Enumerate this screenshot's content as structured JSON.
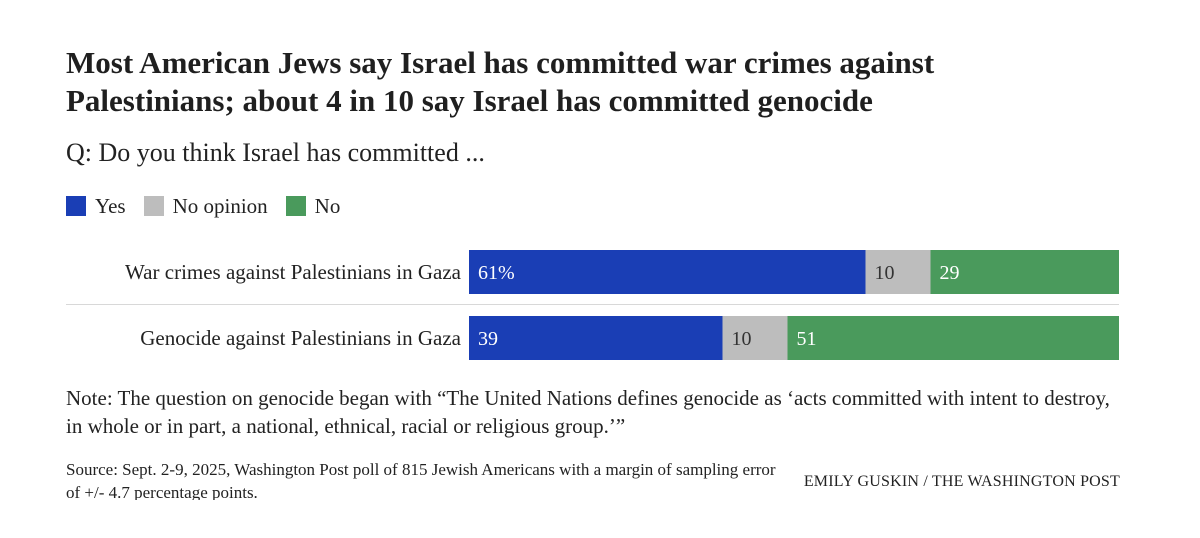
{
  "header": {
    "title": "Most American Jews say Israel has committed war crimes against Palestinians; about 4 in 10 say Israel has committed genocide",
    "subtitle": "Q: Do you think Israel has committed ..."
  },
  "legend": {
    "items": [
      {
        "label": "Yes",
        "color": "#1a3eb5"
      },
      {
        "label": "No opinion",
        "color": "#bdbdbd"
      },
      {
        "label": "No",
        "color": "#4a9a5c"
      }
    ]
  },
  "chart_data": {
    "type": "bar",
    "orientation": "horizontal",
    "stacked": true,
    "categories": [
      "War crimes against Palestinians in Gaza",
      "Genocide against Palestinians in Gaza"
    ],
    "series": [
      {
        "name": "Yes",
        "color": "#1a3eb5",
        "values": [
          61,
          39
        ],
        "labels": [
          "61%",
          "39"
        ]
      },
      {
        "name": "No opinion",
        "color": "#bdbdbd",
        "values": [
          10,
          10
        ],
        "labels": [
          "10",
          "10"
        ]
      },
      {
        "name": "No",
        "color": "#4a9a5c",
        "values": [
          29,
          51
        ],
        "labels": [
          "29",
          "51"
        ]
      }
    ],
    "xlim": [
      0,
      100
    ],
    "grid": false,
    "legend_position": "top-left"
  },
  "footer": {
    "note": "Note: The question on genocide began with “The United Nations defines genocide as ‘acts committed with intent to destroy, in whole or in part, a national, ethnical, racial or religious group.’”",
    "source": "Source: Sept. 2-9, 2025, Washington Post poll of 815 Jewish Americans with a margin of sampling error of +/- 4.7 percentage points.",
    "credit": "EMILY GUSKIN / THE WASHINGTON POST"
  }
}
